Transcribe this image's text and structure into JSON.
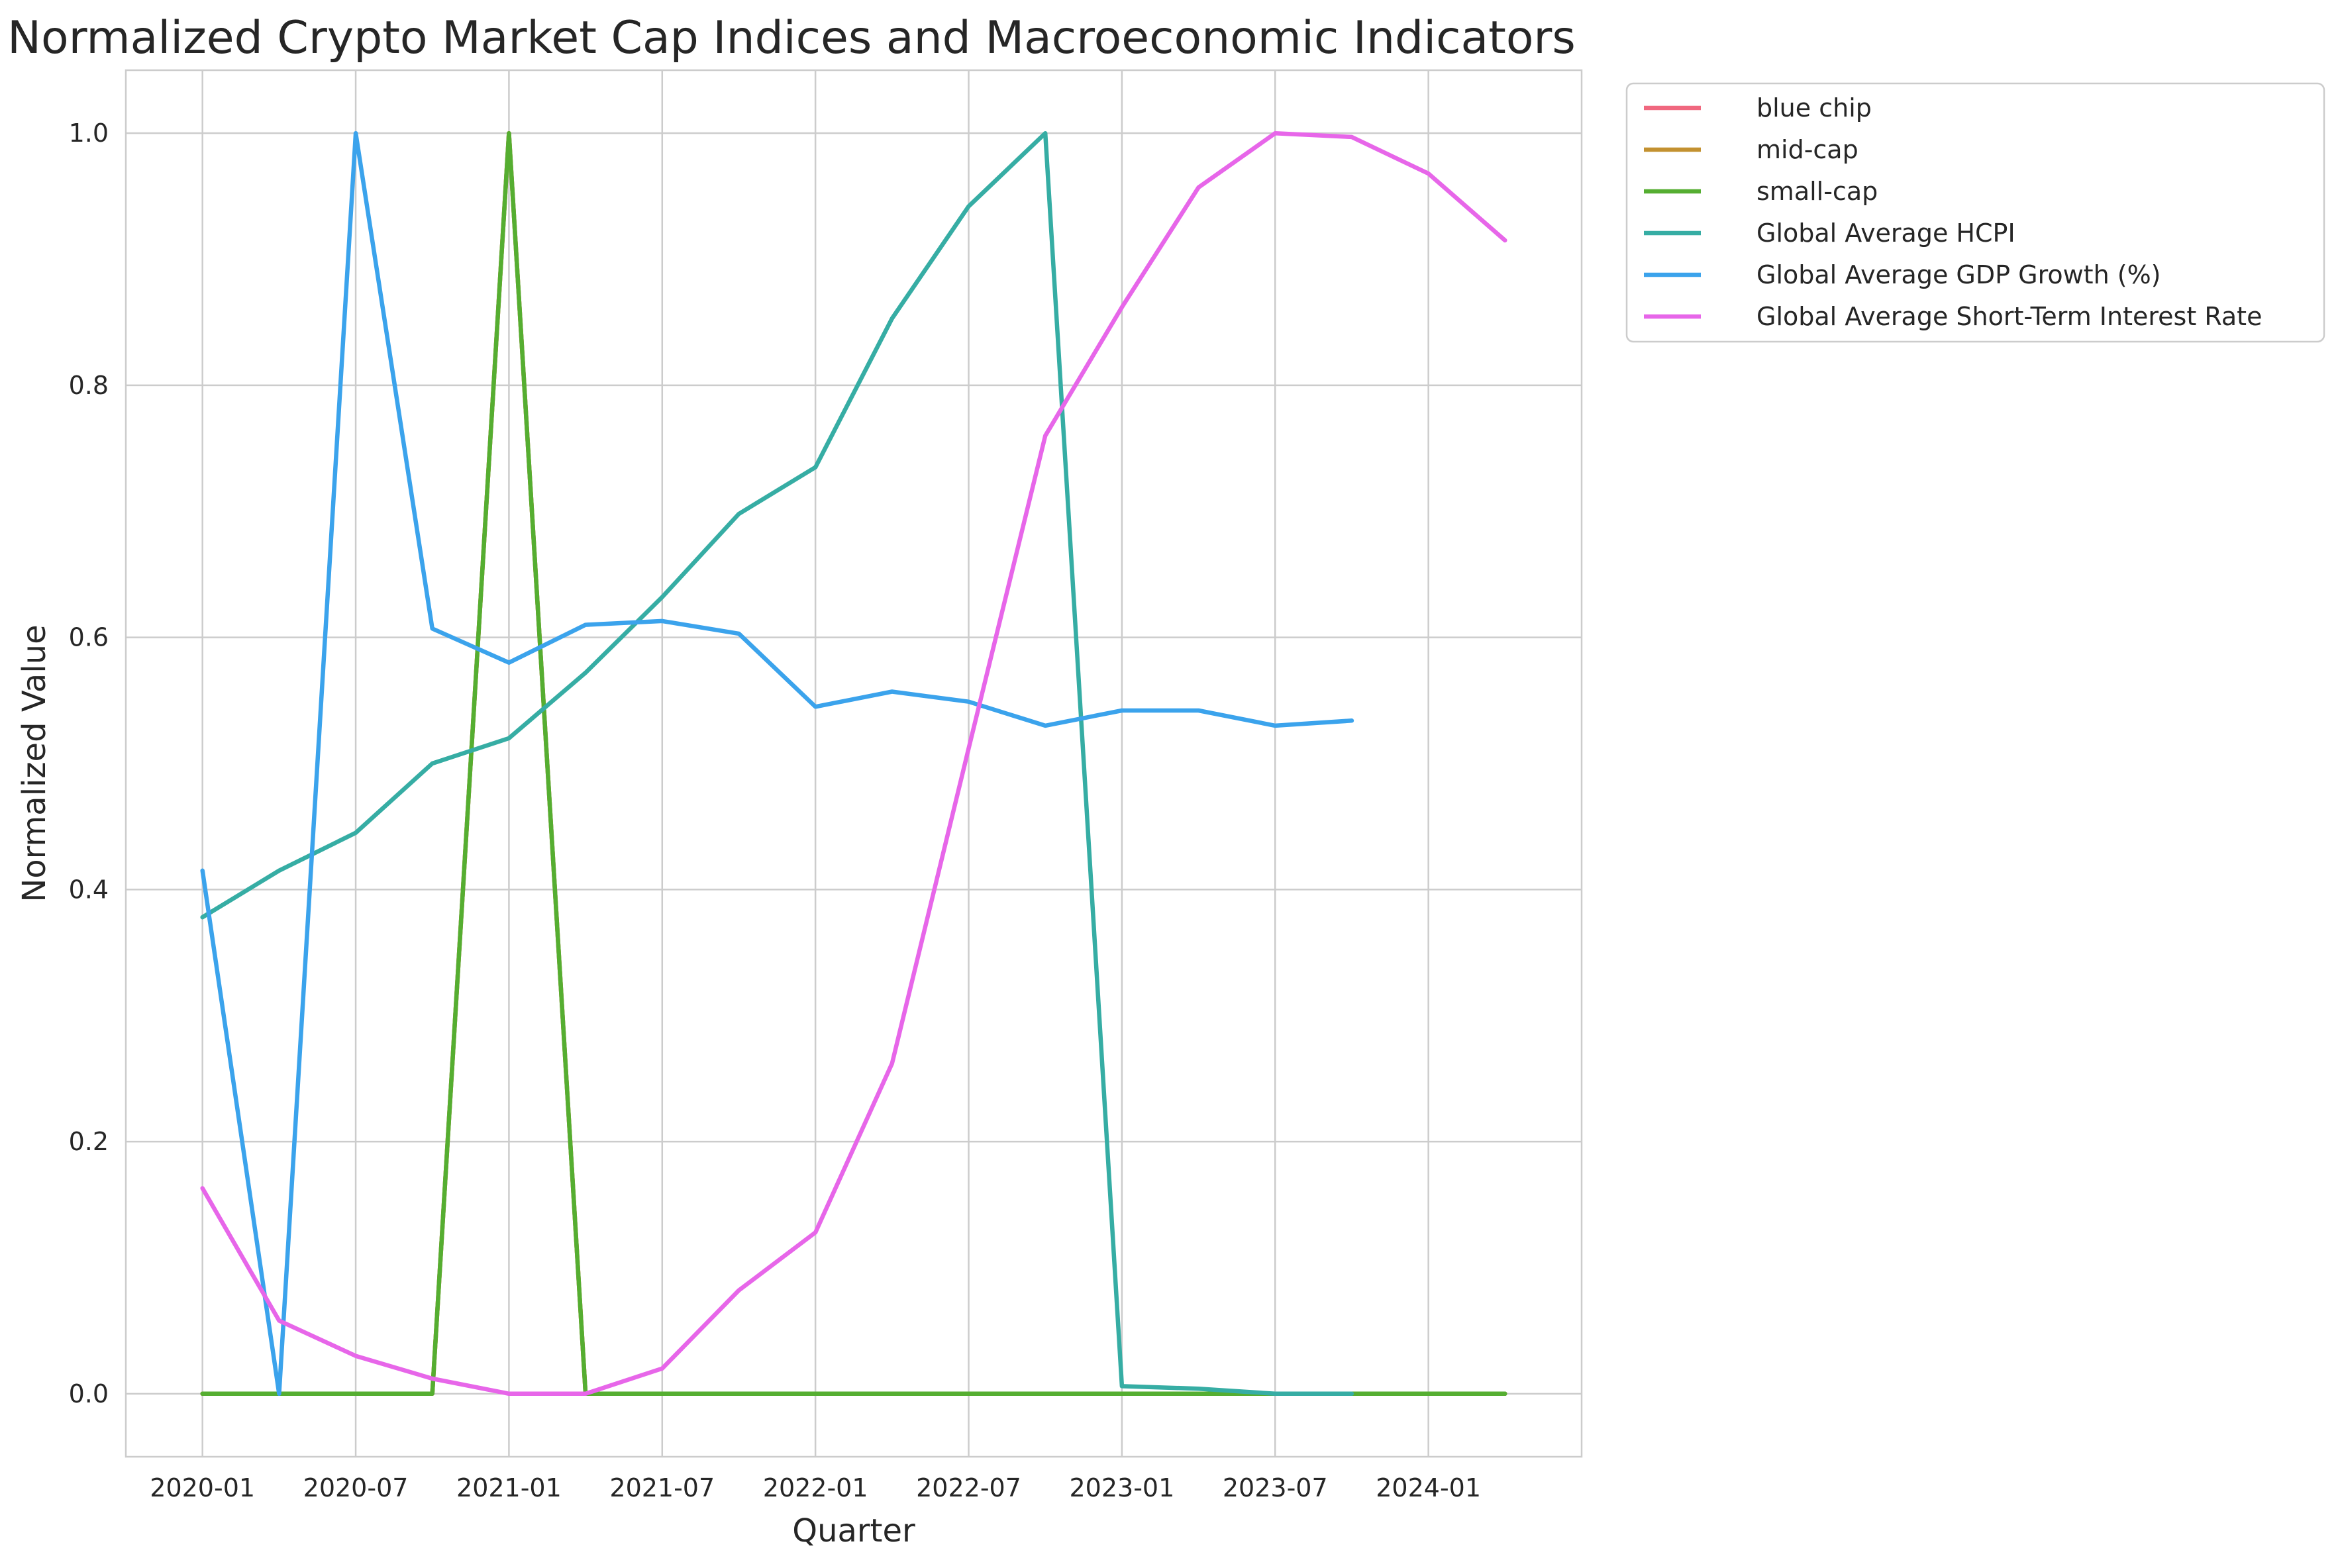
{
  "chart_data": {
    "type": "line",
    "title": "Normalized Crypto Market Cap Indices and Macroeconomic Indicators",
    "xlabel": "Quarter",
    "ylabel": "Normalized Value",
    "x_ticks": [
      "2020-01",
      "2020-07",
      "2021-01",
      "2021-07",
      "2022-01",
      "2022-07",
      "2023-01",
      "2023-07",
      "2024-01"
    ],
    "y_ticks": [
      "0.0",
      "0.2",
      "0.4",
      "0.6",
      "0.8",
      "1.0"
    ],
    "ylim": [
      -0.05,
      1.05
    ],
    "xlim": [
      "2019-10",
      "2024-07"
    ],
    "grid": true,
    "legend_position": "outside upper right",
    "x": [
      "2020-01",
      "2020-04",
      "2020-07",
      "2020-10",
      "2021-01",
      "2021-04",
      "2021-07",
      "2021-10",
      "2022-01",
      "2022-04",
      "2022-07",
      "2022-10",
      "2023-01",
      "2023-04",
      "2023-07",
      "2023-10",
      "2024-01",
      "2024-04"
    ],
    "series": [
      {
        "name": "blue chip",
        "color": "#f0687f",
        "values": [
          0,
          0,
          0,
          0,
          1.0,
          0,
          0,
          0,
          0,
          0,
          0,
          0,
          0,
          0,
          0,
          0,
          0,
          0
        ]
      },
      {
        "name": "mid-cap",
        "color": "#c39130",
        "values": [
          0,
          0,
          0,
          0,
          1.0,
          0,
          0,
          0,
          0,
          0,
          0,
          0,
          0,
          0,
          0,
          0,
          0,
          0
        ]
      },
      {
        "name": "small-cap",
        "color": "#55ae31",
        "values": [
          0,
          0,
          0,
          0,
          1.0,
          0,
          0,
          0,
          0,
          0,
          0,
          0,
          0,
          0,
          0,
          0,
          0,
          0
        ]
      },
      {
        "name": "Global Average HCPI",
        "color": "#36ada4",
        "values": [
          0.378,
          0.415,
          0.445,
          0.5,
          0.52,
          0.572,
          0.632,
          0.698,
          0.735,
          0.853,
          0.942,
          1.0,
          0.006,
          0.004,
          0.0,
          0.0,
          null,
          null
        ]
      },
      {
        "name": "Global Average GDP Growth (%)",
        "color": "#3ba3ec",
        "values": [
          0.415,
          0.0,
          1.0,
          0.607,
          0.58,
          0.61,
          0.613,
          0.603,
          0.545,
          0.557,
          0.549,
          0.53,
          0.542,
          0.542,
          0.53,
          0.534,
          null,
          null
        ]
      },
      {
        "name": "Global Average Short-Term Interest Rate",
        "color": "#e766e9",
        "values": [
          0.163,
          0.058,
          0.03,
          0.012,
          0.0,
          0.0,
          0.02,
          0.082,
          0.128,
          0.262,
          0.512,
          0.76,
          0.862,
          0.957,
          1.0,
          0.997,
          0.968,
          0.915
        ]
      }
    ]
  }
}
